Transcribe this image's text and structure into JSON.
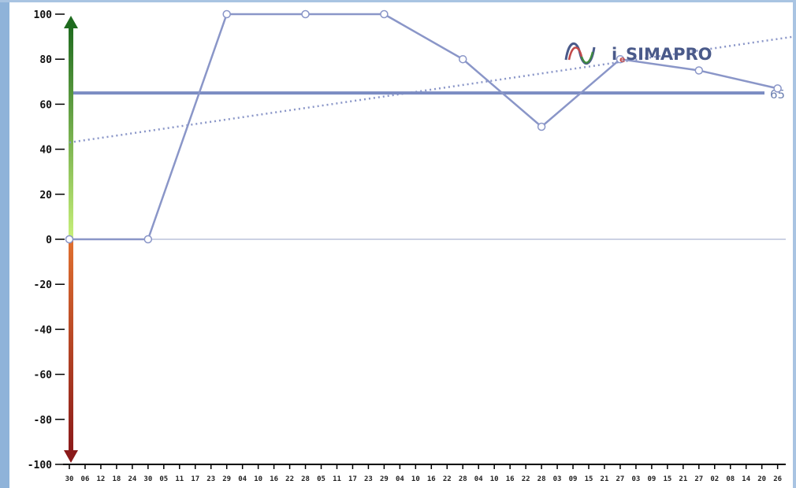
{
  "logo": {
    "prefix": "i",
    "sub": "e",
    "brand": "SIMAPRO",
    "colors": {
      "text": "#4a5a8a",
      "red": "#c24a4a",
      "green": "#3f8a3f"
    }
  },
  "chart_data": {
    "type": "line",
    "title": "",
    "xlabel": "",
    "ylabel": "",
    "ylim": [
      -100,
      100
    ],
    "yticks": [
      100,
      80,
      60,
      40,
      20,
      0,
      -20,
      -40,
      -60,
      -80,
      -100
    ],
    "x_tick_labels": [
      "30",
      "06",
      "12",
      "18",
      "24",
      "30",
      "05",
      "11",
      "17",
      "23",
      "29",
      "04",
      "10",
      "16",
      "22",
      "28",
      "05",
      "11",
      "17",
      "23",
      "29",
      "04",
      "10",
      "16",
      "22",
      "28",
      "04",
      "10",
      "16",
      "22",
      "28",
      "03",
      "09",
      "15",
      "21",
      "27",
      "03",
      "09",
      "15",
      "21",
      "27",
      "02",
      "08",
      "14",
      "20",
      "26"
    ],
    "series": [
      {
        "values_by_tick_index": [
          [
            0,
            0
          ],
          [
            5,
            0
          ],
          [
            10,
            100
          ],
          [
            15,
            100
          ],
          [
            20,
            100
          ],
          [
            25,
            80
          ],
          [
            30,
            50
          ],
          [
            35,
            80
          ],
          [
            40,
            75
          ],
          [
            45,
            67
          ]
        ],
        "color": "#8a96c8",
        "markers": "circle"
      }
    ],
    "trend_line": {
      "from": [
        0,
        43
      ],
      "to": [
        46,
        90
      ],
      "style": "dotted",
      "color": "#8a96c8"
    },
    "reference_line": {
      "value": 65,
      "label": "65",
      "color": "#7b8cc2"
    },
    "zero_line": {
      "value": 0,
      "color": "#9aa6c8"
    },
    "axis_arrow": {
      "positive_gradient": [
        "#1f6b1f",
        "#c8f07a"
      ],
      "negative_gradient": [
        "#e07030",
        "#8a1a1a"
      ]
    },
    "grid": false
  }
}
